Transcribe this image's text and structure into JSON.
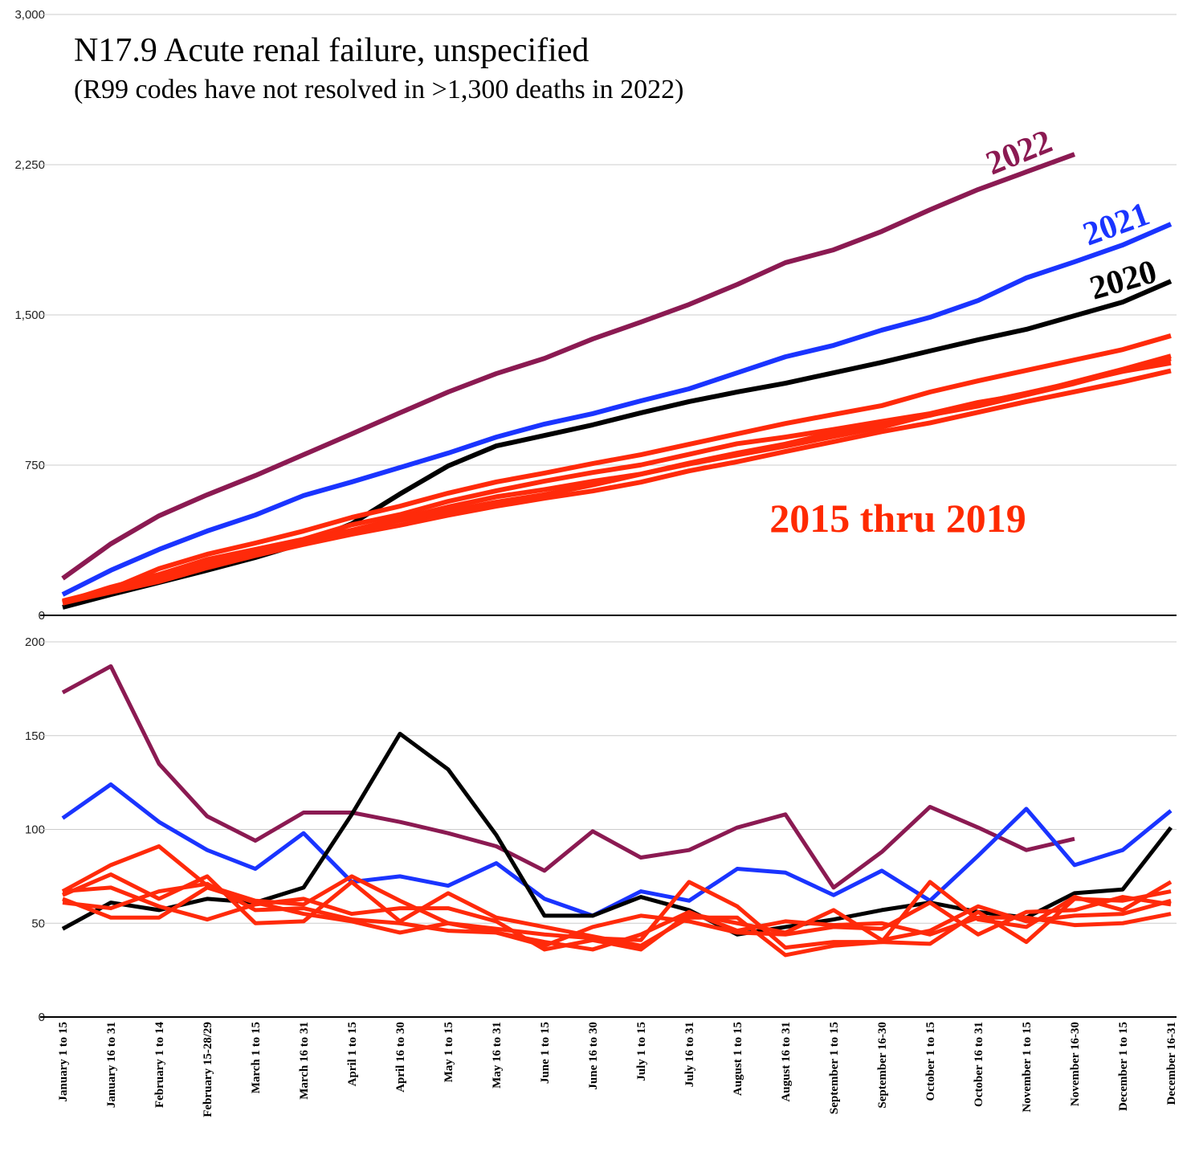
{
  "chart_data": [
    {
      "type": "line",
      "title": "N17.9 Acute renal failure, unspecified",
      "subtitle": "(R99 codes have not resolved in >1,300 deaths in 2022)",
      "annotation": "2015 thru 2019",
      "annotation_color": "#ff2a00",
      "ylim": [
        0,
        3000
      ],
      "yticks": [
        0,
        750,
        {
          "value": 1500,
          "label": "1,500"
        },
        {
          "value": 2250,
          "label": "2,250"
        },
        {
          "value": 3000,
          "label": "3,000"
        }
      ],
      "grid": true,
      "series": [
        {
          "name": "2022",
          "color": "#8b1a52",
          "values": [
            184,
            357,
            497,
            602,
            698,
            802,
            906,
            1011,
            1115,
            1207,
            1283,
            1380,
            1464,
            1552,
            1652,
            1761,
            1825,
            1917,
            2025,
            2126,
            2214,
            2302,
            null,
            null
          ]
        },
        {
          "name": "2021",
          "color": "#1a34ff",
          "values": [
            104,
            225,
            329,
            421,
            501,
            598,
            666,
            738,
            810,
            890,
            955,
            1007,
            1071,
            1131,
            1211,
            1291,
            1348,
            1424,
            1488,
            1572,
            1685,
            1765,
            1849,
            1953
          ]
        },
        {
          "name": "2020",
          "color": "#000000",
          "values": [
            40,
            104,
            164,
            225,
            289,
            361,
            457,
            606,
            746,
            846,
            898,
            951,
            1011,
            1067,
            1115,
            1159,
            1211,
            1263,
            1320,
            1376,
            1428,
            1496,
            1564,
            1668
          ]
        },
        {
          "color": "#ff2a0a",
          "values": [
            72,
            132,
            233,
            305,
            361,
            421,
            489,
            545,
            610,
            666,
            710,
            758,
            802,
            854,
            906,
            958,
            1003,
            1047,
            1115,
            1171,
            1223,
            1275,
            1327,
            1396
          ]
        },
        {
          "color": "#ff2a0a",
          "values": [
            65,
            141,
            204,
            279,
            329,
            380,
            452,
            503,
            569,
            622,
            670,
            713,
            751,
            804,
            857,
            890,
            928,
            968,
            1007,
            1063,
            1103,
            1166,
            1228,
            1295
          ]
        },
        {
          "color": "#ff2a0a",
          "values": [
            63,
            116,
            169,
            238,
            299,
            354,
            405,
            450,
            500,
            545,
            585,
            621,
            665,
            721,
            767,
            818,
            867,
            917,
            961,
            1014,
            1067,
            1116,
            1166,
            1221
          ]
        },
        {
          "color": "#ff2a0a",
          "values": [
            67,
            136,
            195,
            247,
            307,
            370,
            425,
            483,
            541,
            592,
            628,
            669,
            705,
            760,
            810,
            855,
            912,
            953,
            999,
            1058,
            1109,
            1163,
            1218,
            1260
          ]
        },
        {
          "color": "#ff2a0a",
          "values": [
            61,
            119,
            186,
            257,
            314,
            372,
            424,
            474,
            520,
            565,
            603,
            651,
            705,
            756,
            801,
            845,
            893,
            940,
            1001,
            1045,
            1101,
            1158,
            1222,
            1282
          ]
        }
      ]
    },
    {
      "type": "line",
      "categories": [
        "January 1 to 15",
        "January 16 to 31",
        "February 1 to 14",
        "February 15-28/29",
        "March 1 to 15",
        "March 16 to 31",
        "April 1 to 15",
        "April 16 to 30",
        "May 1 to 15",
        "May 16 to 31",
        "June 1 to 15",
        "June 16 to 30",
        "July 1 to 15",
        "July 16 to 31",
        "August 1 to 15",
        "August 16 to 31",
        "September 1 to 15",
        "September 16-30",
        "October 1 to 15",
        "October 16 to 31",
        "November 1 to 15",
        "November 16-30",
        "December 1 to 15",
        "December 16-31"
      ],
      "ylim": [
        0,
        200
      ],
      "yticks": [
        0,
        50,
        100,
        150,
        200
      ],
      "grid": true,
      "series": [
        {
          "color": "#8b1a52",
          "values": [
            173,
            187,
            135,
            107,
            94,
            109,
            109,
            104,
            98,
            91,
            78,
            99,
            85,
            89,
            101,
            108,
            69,
            88,
            112,
            101,
            89,
            95,
            null,
            null
          ]
        },
        {
          "color": "#1a34ff",
          "values": [
            106,
            124,
            104,
            89,
            79,
            98,
            72,
            75,
            70,
            82,
            63,
            54,
            67,
            62,
            79,
            77,
            65,
            78,
            62,
            86,
            111,
            81,
            89,
            110
          ]
        },
        {
          "color": "#000000",
          "values": [
            47,
            61,
            57,
            63,
            61,
            69,
            108,
            151,
            132,
            97,
            54,
            54,
            64,
            57,
            44,
            48,
            52,
            57,
            61,
            56,
            53,
            66,
            68,
            101
          ]
        },
        {
          "color": "#ff2a0a",
          "values": [
            67,
            81,
            91,
            70,
            62,
            60,
            75,
            62,
            50,
            47,
            44,
            42,
            41,
            72,
            59,
            37,
            40,
            40,
            72,
            52,
            48,
            64,
            57,
            72
          ]
        },
        {
          "color": "#ff2a0a",
          "values": [
            65,
            76,
            63,
            75,
            50,
            51,
            72,
            51,
            66,
            53,
            48,
            43,
            38,
            53,
            53,
            33,
            38,
            40,
            39,
            56,
            40,
            63,
            62,
            67
          ]
        },
        {
          "color": "#ff2a0a",
          "values": [
            63,
            53,
            53,
            69,
            61,
            55,
            51,
            45,
            50,
            45,
            40,
            36,
            44,
            56,
            46,
            51,
            49,
            50,
            44,
            53,
            53,
            49,
            50,
            55
          ]
        },
        {
          "color": "#ff2a0a",
          "values": [
            67,
            69,
            59,
            52,
            60,
            63,
            55,
            58,
            58,
            51,
            36,
            41,
            36,
            55,
            50,
            45,
            57,
            41,
            46,
            59,
            51,
            54,
            55,
            62
          ]
        },
        {
          "color": "#ff2a0a",
          "values": [
            61,
            58,
            67,
            71,
            57,
            58,
            52,
            50,
            46,
            45,
            38,
            48,
            54,
            51,
            45,
            44,
            48,
            47,
            61,
            44,
            56,
            57,
            64,
            60
          ]
        }
      ]
    }
  ]
}
